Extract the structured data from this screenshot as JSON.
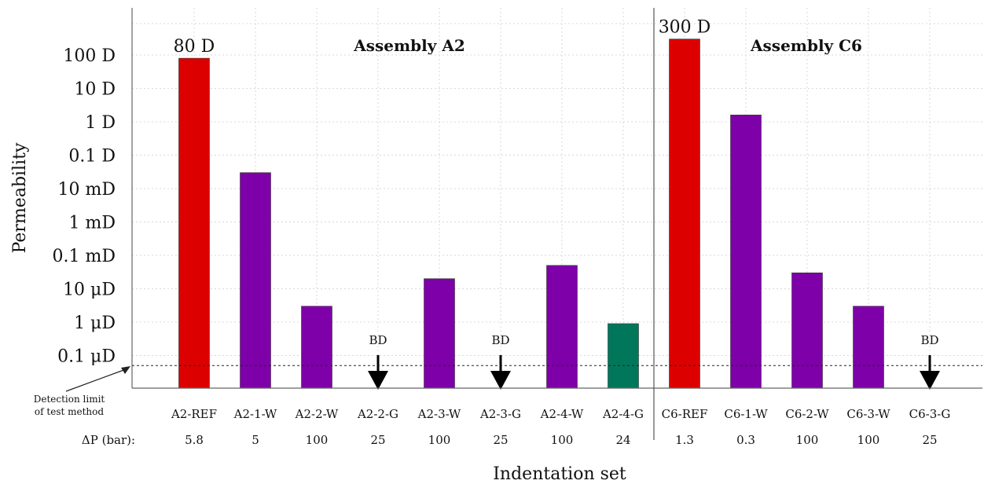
{
  "chart_data": {
    "type": "bar",
    "title": "",
    "xlabel": "Indentation set",
    "ylabel": "Permeability",
    "yscale": "log",
    "y_unit": "darcy",
    "ylim": [
      3e-08,
      1000
    ],
    "grid": true,
    "y_ticks": [
      {
        "value": 1e-07,
        "label": "0.1 μD"
      },
      {
        "value": 1e-06,
        "label": "1 μD"
      },
      {
        "value": 1e-05,
        "label": "10 μD"
      },
      {
        "value": 0.0001,
        "label": "0.1 mD"
      },
      {
        "value": 0.001,
        "label": "1 mD"
      },
      {
        "value": 0.01,
        "label": "10 mD"
      },
      {
        "value": 0.1,
        "label": "0.1 D"
      },
      {
        "value": 1,
        "label": "1 D"
      },
      {
        "value": 10,
        "label": "10 D"
      },
      {
        "value": 100,
        "label": "100 D"
      }
    ],
    "detection_limit": 5e-08,
    "detection_limit_label": [
      "Detection limit",
      "of test method"
    ],
    "delta_p_label": "ΔP (bar):",
    "categories": [
      "A2-REF",
      "A2-1-W",
      "A2-2-W",
      "A2-2-G",
      "A2-3-W",
      "A2-3-G",
      "A2-4-W",
      "A2-4-G",
      "C6-REF",
      "C6-1-W",
      "C6-2-W",
      "C6-3-W",
      "C6-3-G"
    ],
    "values": [
      80,
      0.03,
      3e-06,
      null,
      2e-05,
      null,
      5e-05,
      9e-07,
      300,
      1.6,
      3e-05,
      3e-06,
      null
    ],
    "colors": [
      "#dd0000",
      "#7e00a8",
      "#7e00a8",
      "#000000",
      "#7e00a8",
      "#000000",
      "#7e00a8",
      "#00775a",
      "#dd0000",
      "#7e00a8",
      "#7e00a8",
      "#7e00a8",
      "#000000"
    ],
    "below_detection": [
      false,
      false,
      false,
      true,
      false,
      true,
      false,
      false,
      false,
      false,
      false,
      false,
      true
    ],
    "below_detection_label": "BD",
    "delta_p": [
      "5.8",
      "5",
      "100",
      "25",
      "100",
      "25",
      "100",
      "24",
      "1.3",
      "0.3",
      "100",
      "100",
      "25"
    ],
    "annotations": [
      {
        "category": "A2-REF",
        "text": "80 D"
      },
      {
        "category": "C6-REF",
        "text": "300 D"
      }
    ],
    "sections": [
      {
        "name": "Assembly A2",
        "categories": [
          "A2-REF",
          "A2-1-W",
          "A2-2-W",
          "A2-2-G",
          "A2-3-W",
          "A2-3-G",
          "A2-4-W",
          "A2-4-G"
        ]
      },
      {
        "name": "Assembly C6",
        "categories": [
          "C6-REF",
          "C6-1-W",
          "C6-2-W",
          "C6-3-W",
          "C6-3-G"
        ]
      }
    ]
  }
}
